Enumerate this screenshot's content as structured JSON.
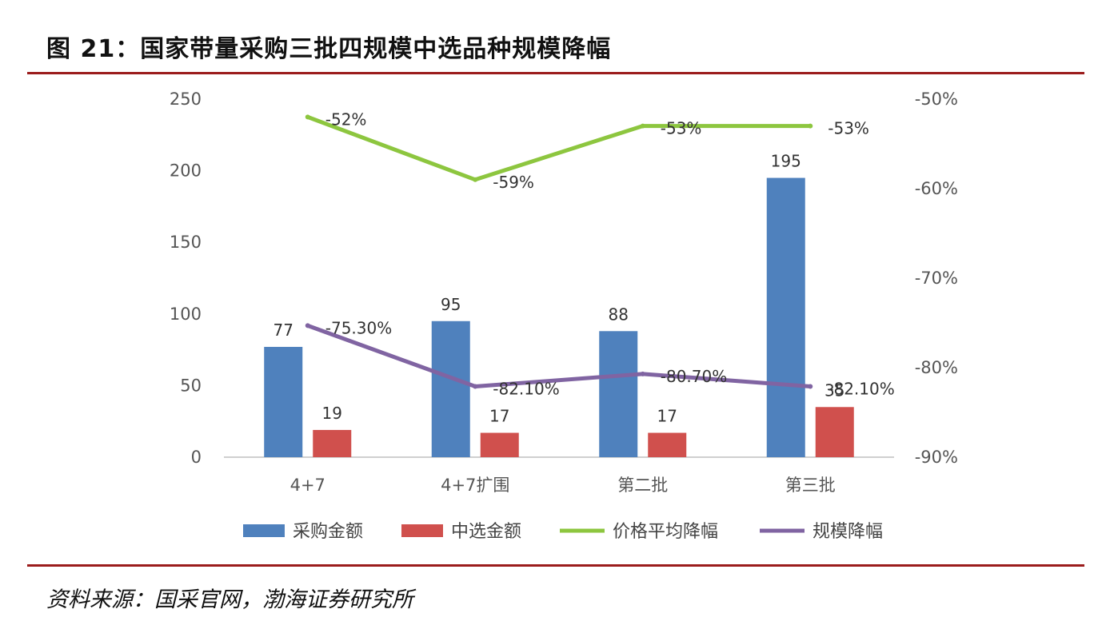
{
  "title": "图 21：国家带量采购三批四规模中选品种规模降幅",
  "source": "资料来源：国采官网，渤海证券研究所",
  "chart_data": {
    "type": "bar",
    "categories": [
      "4+7",
      "4+7扩围",
      "第二批",
      "第三批"
    ],
    "y_left": {
      "ticks": [
        "0",
        "50",
        "100",
        "150",
        "200",
        "250"
      ],
      "range": [
        0,
        250
      ]
    },
    "y_right": {
      "ticks": [
        "-90%",
        "-80%",
        "-70%",
        "-60%",
        "-50%"
      ],
      "range": [
        -90,
        -50
      ]
    },
    "series": [
      {
        "name": "采购金额",
        "kind": "bar",
        "axis": "left",
        "color": "#4f81bd",
        "values": [
          77,
          95,
          88,
          195
        ],
        "labels": [
          "77",
          "95",
          "88",
          "195"
        ]
      },
      {
        "name": "中选金额",
        "kind": "bar",
        "axis": "left",
        "color": "#d0504d",
        "values": [
          19,
          17,
          17,
          35
        ],
        "labels": [
          "19",
          "17",
          "17",
          "35"
        ]
      },
      {
        "name": "价格平均降幅",
        "kind": "line",
        "axis": "right",
        "color": "#8dc63f",
        "values": [
          -52,
          -59,
          -53,
          -53
        ],
        "labels": [
          "-52%",
          "-59%",
          "-53%",
          "-53%"
        ]
      },
      {
        "name": "规模降幅",
        "kind": "line",
        "axis": "right",
        "color": "#8064a2",
        "values": [
          -75.3,
          -82.1,
          -80.7,
          -82.1
        ],
        "labels": [
          "-75.30%",
          "-82.10%",
          "-80.70%",
          "-82.10%"
        ]
      }
    ],
    "legend_position": "bottom",
    "grid": false
  }
}
